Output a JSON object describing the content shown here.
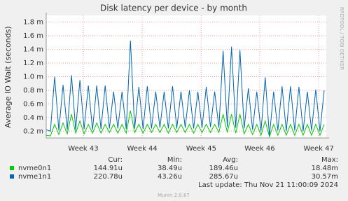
{
  "chart_data": {
    "type": "line",
    "title": "Disk latency per device - by month",
    "y_label": "Average IO Wait (seconds)",
    "side_label": "RRDTOOL / TOBI OETIKER",
    "x": [
      0,
      1,
      2,
      3,
      4,
      5,
      6,
      7,
      8,
      9,
      10,
      11,
      12,
      13,
      14,
      15,
      16,
      17,
      18,
      19,
      20,
      21,
      22,
      23,
      24,
      25,
      26,
      27,
      28,
      29,
      30,
      31,
      32,
      33,
      34,
      35,
      36,
      37,
      38,
      39,
      40,
      41,
      42,
      43,
      44,
      45,
      46,
      47,
      48,
      49,
      50,
      51,
      52,
      53,
      54,
      55,
      56,
      57,
      58,
      59,
      60,
      61,
      62,
      63,
      64,
      65,
      66
    ],
    "series": [
      {
        "name": "nvme0n1",
        "color": "#00cc00",
        "values": [
          0.14,
          0.13,
          0.3,
          0.15,
          0.32,
          0.16,
          0.45,
          0.17,
          0.35,
          0.16,
          0.3,
          0.17,
          0.32,
          0.17,
          0.3,
          0.18,
          0.3,
          0.17,
          0.3,
          0.17,
          0.5,
          0.18,
          0.3,
          0.17,
          0.3,
          0.18,
          0.3,
          0.18,
          0.3,
          0.17,
          0.3,
          0.18,
          0.3,
          0.18,
          0.3,
          0.17,
          0.3,
          0.18,
          0.3,
          0.18,
          0.3,
          0.18,
          0.45,
          0.18,
          0.45,
          0.17,
          0.45,
          0.16,
          0.3,
          0.15,
          0.3,
          0.14,
          0.35,
          0.12,
          0.3,
          0.14,
          0.3,
          0.14,
          0.3,
          0.14,
          0.3,
          0.14,
          0.3,
          0.14,
          0.3,
          0.14,
          0.3
        ]
      },
      {
        "name": "nvme1n1",
        "color": "#0066b3",
        "values": [
          0.22,
          0.2,
          1.0,
          0.21,
          0.88,
          0.22,
          1.02,
          0.22,
          0.95,
          0.23,
          0.87,
          0.22,
          0.87,
          0.23,
          0.87,
          0.24,
          0.78,
          0.24,
          0.78,
          0.23,
          1.53,
          0.24,
          0.85,
          0.23,
          0.86,
          0.24,
          0.78,
          0.25,
          0.78,
          0.24,
          0.86,
          0.24,
          0.78,
          0.25,
          0.8,
          0.24,
          0.78,
          0.25,
          0.85,
          0.26,
          0.78,
          0.25,
          1.38,
          0.26,
          1.44,
          0.25,
          1.39,
          0.24,
          0.83,
          0.22,
          0.78,
          0.2,
          0.99,
          0.13,
          0.78,
          0.21,
          0.86,
          0.2,
          0.86,
          0.21,
          0.85,
          0.2,
          0.78,
          0.21,
          0.81,
          0.2,
          0.8
        ]
      }
    ],
    "xlim": [
      0,
      66.5
    ],
    "xticks": [
      {
        "value": 8.8,
        "label": "Week 43"
      },
      {
        "value": 22.8,
        "label": "Week 44"
      },
      {
        "value": 36.8,
        "label": "Week 45"
      },
      {
        "value": 50.7,
        "label": "Week 46"
      },
      {
        "value": 64.7,
        "label": "Week 47"
      }
    ],
    "ylim": [
      0.1,
      1.9
    ],
    "yticks": [
      {
        "value": 0.2,
        "label": "0.2 m"
      },
      {
        "value": 0.4,
        "label": "0.4 m"
      },
      {
        "value": 0.6,
        "label": "0.6 m"
      },
      {
        "value": 0.8,
        "label": "0.8 m"
      },
      {
        "value": 1,
        "label": "1.0 m"
      },
      {
        "value": 1.2,
        "label": "1.2 m"
      },
      {
        "value": 1.4,
        "label": "1.4 m"
      },
      {
        "value": 1.6,
        "label": "1.6 m"
      },
      {
        "value": 1.8,
        "label": "1.8 m"
      }
    ],
    "grid": true,
    "summary": {
      "headers": [
        "Cur:",
        "Min:",
        "Avg:",
        "Max:"
      ],
      "rows": [
        [
          "144.91u",
          "38.49u",
          "189.46u",
          "18.48m"
        ],
        [
          "220.78u",
          "43.26u",
          "285.67u",
          "30.57m"
        ]
      ]
    },
    "last_update": "Last update: Thu Nov 21 11:00:09 2024",
    "footer": "Munin 2.0.67"
  }
}
